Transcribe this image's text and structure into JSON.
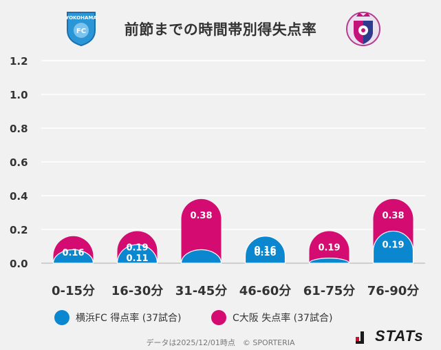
{
  "title": "前節までの時間帯別得失点率",
  "teams": {
    "left_logo_text": "YOKOHAMA",
    "left_logo_badge": "FC",
    "right_logo_name": "Cerezo Osaka"
  },
  "legend": [
    {
      "label": "横浜FC 得点率 (37試合)",
      "color": "#0b87d0"
    },
    {
      "label": "C大阪 失点率 (37試合)",
      "color": "#d40b71"
    }
  ],
  "footer": {
    "note": "データは2025/12/01時点　© SPORTERIA",
    "brand": "STATs"
  },
  "chart_data": {
    "type": "bar",
    "title": "前節までの時間帯別得失点率",
    "categories": [
      "0-15分",
      "16-30分",
      "31-45分",
      "46-60分",
      "61-75分",
      "76-90分"
    ],
    "series": [
      {
        "name": "横浜FC 得点率 (37試合)",
        "values": [
          0.08,
          0.11,
          0.08,
          0.16,
          0.03,
          0.19
        ],
        "labels": [
          "",
          "0.11",
          "",
          "0.16",
          "",
          "0.19"
        ],
        "color": "#0b87d0"
      },
      {
        "name": "C大阪 失点率 (37試合)",
        "values": [
          0.16,
          0.19,
          0.38,
          0.16,
          0.19,
          0.38
        ],
        "labels": [
          "0.16",
          "0.19",
          "0.38",
          "0.16",
          "0.19",
          "0.38"
        ],
        "color": "#d40b71"
      }
    ],
    "yticks": [
      "0.0",
      "0.2",
      "0.4",
      "0.6",
      "0.8",
      "1.0",
      "1.2"
    ],
    "ylim": [
      0,
      1.2
    ],
    "grid": true,
    "xlabel": "",
    "ylabel": "",
    "legend_position": "bottom"
  }
}
